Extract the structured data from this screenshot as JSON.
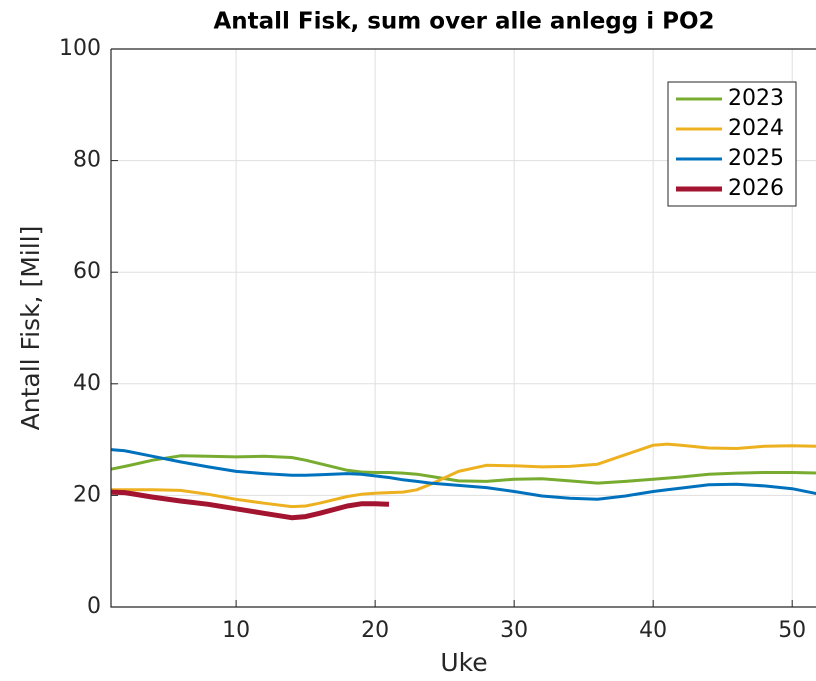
{
  "chart_data": {
    "type": "line",
    "title": "Antall Fisk, sum over alle anlegg i PO2",
    "xlabel": "Uke",
    "ylabel": "Antall Fisk, [Mill]",
    "x": [
      1,
      2,
      4,
      6,
      8,
      10,
      12,
      14,
      15,
      16,
      18,
      19,
      20,
      21,
      22,
      23,
      24,
      26,
      28,
      30,
      32,
      34,
      36,
      38,
      40,
      41,
      42,
      44,
      46,
      48,
      50,
      52
    ],
    "series": [
      {
        "name": "2023",
        "color": "#77ac30",
        "width": 3,
        "values": [
          24.7,
          25.2,
          26.3,
          27.1,
          27.0,
          26.9,
          27.0,
          26.8,
          26.3,
          25.7,
          24.5,
          24.2,
          24.1,
          24.1,
          24.0,
          23.8,
          23.4,
          22.6,
          22.5,
          22.9,
          23.0,
          22.6,
          22.2,
          22.5,
          22.9,
          23.1,
          23.3,
          23.8,
          24.0,
          24.1,
          24.1,
          24.0
        ]
      },
      {
        "name": "2024",
        "color": "#edb120",
        "width": 3,
        "values": [
          21.0,
          21.0,
          21.0,
          20.9,
          20.2,
          19.3,
          18.6,
          18.0,
          18.1,
          18.6,
          19.8,
          20.2,
          20.4,
          20.5,
          20.6,
          21.0,
          22.0,
          24.3,
          25.4,
          25.3,
          25.1,
          25.2,
          25.6,
          27.3,
          29.0,
          29.2,
          29.0,
          28.5,
          28.4,
          28.8,
          28.9,
          28.8
        ]
      },
      {
        "name": "2025",
        "color": "#0072bd",
        "width": 3,
        "values": [
          28.2,
          28.0,
          27.0,
          26.0,
          25.1,
          24.3,
          23.9,
          23.6,
          23.6,
          23.7,
          23.9,
          23.8,
          23.5,
          23.2,
          22.8,
          22.5,
          22.2,
          21.8,
          21.4,
          20.7,
          19.9,
          19.5,
          19.3,
          19.9,
          20.7,
          21.0,
          21.3,
          21.9,
          22.0,
          21.7,
          21.2,
          20.2
        ]
      },
      {
        "name": "2026",
        "color": "#a2142f",
        "width": 5,
        "values": [
          20.6,
          20.5,
          19.7,
          19.0,
          18.4,
          17.6,
          16.8,
          16.0,
          16.2,
          16.8,
          18.1,
          18.5,
          18.5,
          18.4,
          null,
          null,
          null,
          null,
          null,
          null,
          null,
          null,
          null,
          null,
          null,
          null,
          null,
          null,
          null,
          null,
          null,
          null
        ]
      }
    ],
    "xlim": [
      1,
      52
    ],
    "xticks": [
      10,
      20,
      30,
      40,
      50
    ],
    "ylim": [
      0,
      100
    ],
    "yticks": [
      0,
      20,
      40,
      60,
      80,
      100
    ],
    "grid": true,
    "legend": "northeast"
  }
}
